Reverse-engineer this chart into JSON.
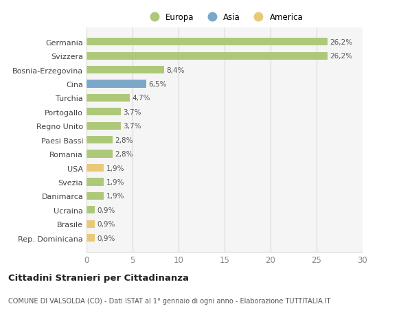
{
  "categories": [
    "Rep. Dominicana",
    "Brasile",
    "Ucraina",
    "Danimarca",
    "Svezia",
    "USA",
    "Romania",
    "Paesi Bassi",
    "Regno Unito",
    "Portogallo",
    "Turchia",
    "Cina",
    "Bosnia-Erzegovina",
    "Svizzera",
    "Germania"
  ],
  "values": [
    0.9,
    0.9,
    0.9,
    1.9,
    1.9,
    1.9,
    2.8,
    2.8,
    3.7,
    3.7,
    4.7,
    6.5,
    8.4,
    26.2,
    26.2
  ],
  "labels": [
    "0,9%",
    "0,9%",
    "0,9%",
    "1,9%",
    "1,9%",
    "1,9%",
    "2,8%",
    "2,8%",
    "3,7%",
    "3,7%",
    "4,7%",
    "6,5%",
    "8,4%",
    "26,2%",
    "26,2%"
  ],
  "colors": [
    "#e8c97a",
    "#e8c97a",
    "#aec87a",
    "#aec87a",
    "#aec87a",
    "#e8c97a",
    "#aec87a",
    "#aec87a",
    "#aec87a",
    "#aec87a",
    "#aec87a",
    "#7aa8c8",
    "#aec87a",
    "#aec87a",
    "#aec87a"
  ],
  "legend": [
    {
      "label": "Europa",
      "color": "#aec87a"
    },
    {
      "label": "Asia",
      "color": "#7aa8c8"
    },
    {
      "label": "America",
      "color": "#e8c97a"
    }
  ],
  "title1": "Cittadini Stranieri per Cittadinanza",
  "title2": "COMUNE DI VALSOLDA (CO) - Dati ISTAT al 1° gennaio di ogni anno - Elaborazione TUTTITALIA.IT",
  "xlim": [
    0,
    30
  ],
  "xticks": [
    0,
    5,
    10,
    15,
    20,
    25,
    30
  ],
  "bg_color": "#ffffff",
  "grid_color": "#d8d8d8",
  "plot_bg": "#f5f5f5"
}
